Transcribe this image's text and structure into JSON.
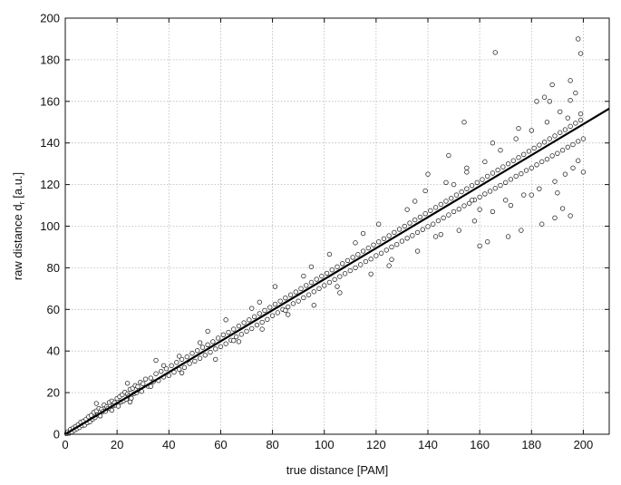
{
  "chart_data": {
    "type": "scatter",
    "title": "",
    "xlabel": "true distance [PAM]",
    "ylabel": "raw distance d",
    "ylabel_subscript": "r",
    "ylabel_units": "[a.u.]",
    "xlim": [
      0,
      210
    ],
    "ylim": [
      0,
      200
    ],
    "x_ticks": [
      "0",
      "20",
      "40",
      "60",
      "80",
      "100",
      "120",
      "140",
      "160",
      "180",
      "200"
    ],
    "y_ticks": [
      "0",
      "20",
      "40",
      "60",
      "80",
      "100",
      "120",
      "140",
      "160",
      "180",
      "200"
    ],
    "grid": true,
    "marker": "open-circle",
    "fit_line": {
      "x": [
        0,
        210
      ],
      "y": [
        0,
        156.5
      ]
    },
    "series": [
      {
        "points": [
          [
            0.5,
            0.3
          ],
          [
            1,
            1.2
          ],
          [
            1.5,
            0.5
          ],
          [
            2,
            2.3
          ],
          [
            2.5,
            1.1
          ],
          [
            3,
            3.0
          ],
          [
            3.5,
            1.9
          ],
          [
            4,
            3.8
          ],
          [
            4.5,
            2.6
          ],
          [
            5,
            4.6
          ],
          [
            5.5,
            3.2
          ],
          [
            6,
            5.8
          ],
          [
            6.5,
            4.1
          ],
          [
            7,
            6.3
          ],
          [
            7.5,
            4.4
          ],
          [
            8,
            7.2
          ],
          [
            8.5,
            5.5
          ],
          [
            9,
            8.4
          ],
          [
            9.5,
            6.0
          ],
          [
            10,
            9.1
          ],
          [
            10.5,
            7.2
          ],
          [
            11,
            10.5
          ],
          [
            11.5,
            8.0
          ],
          [
            12,
            11.2
          ],
          [
            12.5,
            9.3
          ],
          [
            13,
            12.4
          ],
          [
            13.5,
            8.8
          ],
          [
            14,
            12.0
          ],
          [
            14.5,
            10.9
          ],
          [
            15,
            14.1
          ],
          [
            15.5,
            11.0
          ],
          [
            16,
            13.2
          ],
          [
            16.5,
            12.4
          ],
          [
            17,
            15.3
          ],
          [
            17.5,
            12.1
          ],
          [
            18,
            16.0
          ],
          [
            18.5,
            13.7
          ],
          [
            19,
            15.2
          ],
          [
            19.5,
            14.0
          ],
          [
            20,
            17.2
          ],
          [
            20.5,
            13.5
          ],
          [
            21,
            18.1
          ],
          [
            21.5,
            15.5
          ],
          [
            22,
            19.0
          ],
          [
            22.5,
            16.0
          ],
          [
            23,
            20.2
          ],
          [
            23.5,
            16.8
          ],
          [
            24,
            19.3
          ],
          [
            24.5,
            18.4
          ],
          [
            25,
            21.6
          ],
          [
            25.5,
            17.3
          ],
          [
            26,
            22.1
          ],
          [
            26.5,
            19.5
          ],
          [
            27,
            23.4
          ],
          [
            27.5,
            20.0
          ],
          [
            28,
            22.9
          ],
          [
            28.5,
            21.1
          ],
          [
            29,
            25.0
          ],
          [
            29.5,
            20.6
          ],
          [
            30,
            24.3
          ],
          [
            31,
            26.5
          ],
          [
            32,
            23.1
          ],
          [
            33,
            27.0
          ],
          [
            34,
            25.2
          ],
          [
            35,
            29.1
          ],
          [
            36,
            25.8
          ],
          [
            37,
            30.2
          ],
          [
            38,
            27.5
          ],
          [
            39,
            31.5
          ],
          [
            40,
            28.2
          ],
          [
            41,
            33.0
          ],
          [
            42,
            29.8
          ],
          [
            43,
            34.5
          ],
          [
            44,
            31.2
          ],
          [
            45,
            36.0
          ],
          [
            46,
            32.1
          ],
          [
            47,
            37.2
          ],
          [
            48,
            34.0
          ],
          [
            49,
            38.9
          ],
          [
            50,
            35.1
          ],
          [
            51,
            40.2
          ],
          [
            52,
            36.5
          ],
          [
            53,
            41.8
          ],
          [
            54,
            38.0
          ],
          [
            55,
            43.0
          ],
          [
            56,
            39.4
          ],
          [
            57,
            44.5
          ],
          [
            58,
            41.0
          ],
          [
            59,
            46.2
          ],
          [
            60,
            42.1
          ],
          [
            61,
            47.8
          ],
          [
            62,
            43.5
          ],
          [
            63,
            49.0
          ],
          [
            64,
            45.2
          ],
          [
            65,
            50.5
          ],
          [
            66,
            46.8
          ],
          [
            67,
            52.0
          ],
          [
            68,
            48.0
          ],
          [
            69,
            53.6
          ],
          [
            70,
            49.5
          ],
          [
            71,
            55.0
          ],
          [
            72,
            50.8
          ],
          [
            73,
            56.5
          ],
          [
            74,
            52.5
          ],
          [
            75,
            58.0
          ],
          [
            76,
            53.8
          ],
          [
            77,
            59.5
          ],
          [
            78,
            55.2
          ],
          [
            79,
            61.0
          ],
          [
            80,
            57.0
          ],
          [
            81,
            62.5
          ],
          [
            82,
            58.4
          ],
          [
            83,
            64.0
          ],
          [
            84,
            60.0
          ],
          [
            85,
            65.5
          ],
          [
            86,
            61.2
          ],
          [
            87,
            67.0
          ],
          [
            88,
            62.8
          ],
          [
            89,
            68.4
          ],
          [
            90,
            64.0
          ],
          [
            91,
            70.0
          ],
          [
            92,
            65.6
          ],
          [
            93,
            71.5
          ],
          [
            94,
            67.0
          ],
          [
            95,
            73.0
          ],
          [
            96,
            68.5
          ],
          [
            97,
            74.5
          ],
          [
            98,
            70.0
          ],
          [
            99,
            76.0
          ],
          [
            100,
            71.5
          ],
          [
            101,
            77.4
          ],
          [
            102,
            73.0
          ],
          [
            103,
            79.0
          ],
          [
            104,
            74.4
          ],
          [
            105,
            80.5
          ],
          [
            106,
            75.8
          ],
          [
            107,
            82.0
          ],
          [
            108,
            77.2
          ],
          [
            109,
            83.5
          ],
          [
            110,
            78.6
          ],
          [
            111,
            85.0
          ],
          [
            112,
            80.0
          ],
          [
            113,
            86.4
          ],
          [
            114,
            81.5
          ],
          [
            115,
            88.0
          ],
          [
            116,
            83.0
          ],
          [
            117,
            89.5
          ],
          [
            118,
            84.2
          ],
          [
            119,
            91.0
          ],
          [
            120,
            85.8
          ],
          [
            121,
            92.5
          ],
          [
            122,
            87.0
          ],
          [
            123,
            94.0
          ],
          [
            124,
            88.5
          ],
          [
            125,
            95.4
          ],
          [
            126,
            90.0
          ],
          [
            127,
            97.0
          ],
          [
            128,
            91.2
          ],
          [
            129,
            98.5
          ],
          [
            130,
            92.8
          ],
          [
            131,
            100.0
          ],
          [
            132,
            94.2
          ],
          [
            133,
            101.5
          ],
          [
            134,
            95.5
          ],
          [
            135,
            103.0
          ],
          [
            136,
            97.0
          ],
          [
            137,
            104.4
          ],
          [
            138,
            98.4
          ],
          [
            139,
            106.0
          ],
          [
            140,
            99.8
          ],
          [
            141,
            107.5
          ],
          [
            142,
            101.0
          ],
          [
            143,
            109.0
          ],
          [
            144,
            102.6
          ],
          [
            145,
            110.5
          ],
          [
            146,
            104.0
          ],
          [
            147,
            112.0
          ],
          [
            148,
            105.4
          ],
          [
            149,
            113.4
          ],
          [
            150,
            107.0
          ],
          [
            151,
            115.0
          ],
          [
            152,
            108.2
          ],
          [
            153,
            116.5
          ],
          [
            154,
            109.8
          ],
          [
            155,
            118.0
          ],
          [
            156,
            111.0
          ],
          [
            157,
            119.5
          ],
          [
            158,
            112.6
          ],
          [
            159,
            121.0
          ],
          [
            160,
            114.0
          ],
          [
            161,
            122.4
          ],
          [
            162,
            115.5
          ],
          [
            163,
            124.0
          ],
          [
            164,
            116.8
          ],
          [
            165,
            125.5
          ],
          [
            166,
            118.2
          ],
          [
            167,
            127.0
          ],
          [
            168,
            119.6
          ],
          [
            169,
            128.5
          ],
          [
            170,
            121.0
          ],
          [
            171,
            130.0
          ],
          [
            172,
            122.5
          ],
          [
            173,
            131.5
          ],
          [
            174,
            124.0
          ],
          [
            175,
            133.0
          ],
          [
            176,
            125.2
          ],
          [
            177,
            134.5
          ],
          [
            178,
            126.8
          ],
          [
            179,
            136.0
          ],
          [
            180,
            128.0
          ],
          [
            181,
            137.5
          ],
          [
            182,
            129.5
          ],
          [
            183,
            139.0
          ],
          [
            184,
            131.0
          ],
          [
            185,
            140.4
          ],
          [
            186,
            132.2
          ],
          [
            187,
            142.0
          ],
          [
            188,
            133.8
          ],
          [
            189,
            143.4
          ],
          [
            190,
            135.0
          ],
          [
            191,
            145.0
          ],
          [
            192,
            136.5
          ],
          [
            193,
            146.4
          ],
          [
            194,
            138.0
          ],
          [
            195,
            148.0
          ],
          [
            196,
            139.2
          ],
          [
            197,
            149.5
          ],
          [
            198,
            140.8
          ],
          [
            199,
            151.0
          ],
          [
            200,
            142.0
          ],
          [
            12,
            14.8
          ],
          [
            18,
            11.5
          ],
          [
            24,
            24.5
          ],
          [
            33,
            23.0
          ],
          [
            38,
            33.0
          ],
          [
            44,
            37.5
          ],
          [
            52,
            44.0
          ],
          [
            58,
            36.0
          ],
          [
            62,
            55.0
          ],
          [
            67,
            44.5
          ],
          [
            72,
            60.5
          ],
          [
            76,
            50.5
          ],
          [
            81,
            71.0
          ],
          [
            86,
            57.5
          ],
          [
            92,
            76.0
          ],
          [
            96,
            62.0
          ],
          [
            102,
            86.5
          ],
          [
            106,
            68.0
          ],
          [
            112,
            92.0
          ],
          [
            118,
            77.0
          ],
          [
            121,
            101.0
          ],
          [
            126,
            84.0
          ],
          [
            132,
            108.0
          ],
          [
            136,
            88.0
          ],
          [
            139,
            117.0
          ],
          [
            143,
            95.0
          ],
          [
            147,
            121.0
          ],
          [
            152,
            98.0
          ],
          [
            155,
            128.0
          ],
          [
            158,
            102.5
          ],
          [
            162,
            131.0
          ],
          [
            165,
            107.0
          ],
          [
            168,
            136.5
          ],
          [
            172,
            110.0
          ],
          [
            174,
            142.0
          ],
          [
            177,
            115.0
          ],
          [
            180,
            146.0
          ],
          [
            183,
            118.0
          ],
          [
            186,
            150.0
          ],
          [
            189,
            121.5
          ],
          [
            191,
            155.0
          ],
          [
            193,
            125.0
          ],
          [
            195,
            160.5
          ],
          [
            196,
            128.0
          ],
          [
            197,
            164.0
          ],
          [
            198,
            131.5
          ],
          [
            199,
            154.0
          ],
          [
            200,
            126.0
          ],
          [
            194,
            152.0
          ],
          [
            187,
            160.0
          ],
          [
            25,
            15.5
          ],
          [
            35,
            35.5
          ],
          [
            45,
            29.5
          ],
          [
            55,
            49.5
          ],
          [
            65,
            45.0
          ],
          [
            75,
            63.5
          ],
          [
            85,
            59.5
          ],
          [
            95,
            80.5
          ],
          [
            105,
            71.0
          ],
          [
            115,
            96.5
          ],
          [
            125,
            81.0
          ],
          [
            135,
            112.0
          ],
          [
            145,
            96.0
          ],
          [
            155,
            126.0
          ],
          [
            160,
            108.0
          ],
          [
            165,
            140.0
          ],
          [
            170,
            112.5
          ],
          [
            175,
            147.0
          ],
          [
            180,
            115.0
          ],
          [
            185,
            162.0
          ],
          [
            190,
            116.0
          ],
          [
            195,
            170.0
          ],
          [
            199,
            183.0
          ],
          [
            198,
            190.0
          ],
          [
            166,
            183.5
          ],
          [
            148,
            134.0
          ],
          [
            154,
            150.0
          ],
          [
            182,
            160.0
          ],
          [
            188,
            168.0
          ],
          [
            192,
            108.5
          ],
          [
            171,
            95.0
          ],
          [
            176,
            98.0
          ],
          [
            184,
            101.0
          ],
          [
            189,
            104.0
          ],
          [
            195,
            105.0
          ],
          [
            160,
            90.5
          ],
          [
            163,
            92.5
          ],
          [
            157,
            112.5
          ],
          [
            150,
            120.0
          ],
          [
            140,
            125.0
          ]
        ]
      }
    ]
  }
}
